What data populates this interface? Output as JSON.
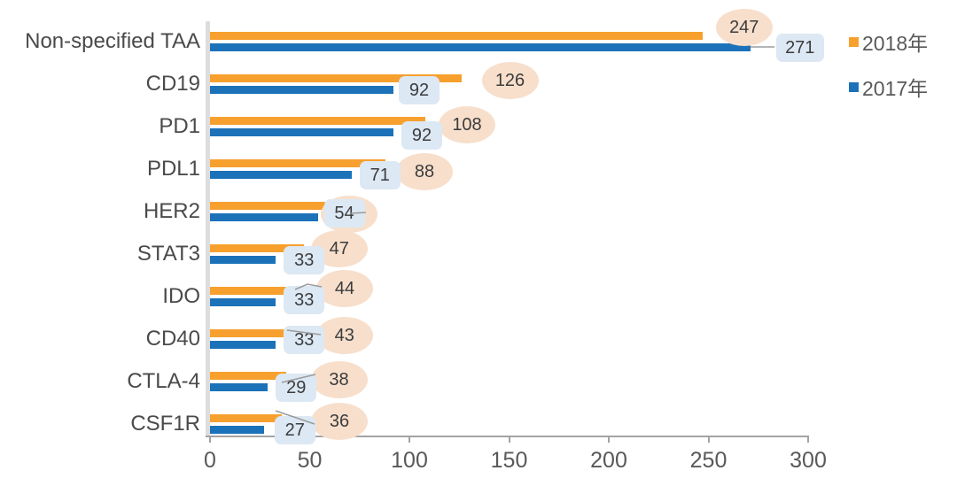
{
  "chart_data": {
    "type": "bar",
    "orientation": "horizontal",
    "title": "",
    "categories": [
      "Non-specified TAA",
      "CD19",
      "PD1",
      "PDL1",
      "HER2",
      "STAT3",
      "IDO",
      "CD40",
      "CTLA-4",
      "CSF1R"
    ],
    "series": [
      {
        "name": "2018年",
        "color": "#f7a02e",
        "label_bubble_color": "#f7dfcc",
        "values": [
          247,
          126,
          108,
          88,
          68,
          47,
          44,
          43,
          38,
          36
        ]
      },
      {
        "name": "2017年",
        "color": "#1c72b8",
        "label_bubble_color": "#dce8f4",
        "values": [
          271,
          92,
          92,
          71,
          54,
          33,
          33,
          33,
          29,
          27
        ]
      }
    ],
    "x_axis": {
      "min": 0,
      "max": 300,
      "ticks": [
        0,
        50,
        100,
        150,
        200,
        250,
        300
      ]
    },
    "grid": false,
    "legend_position": "top-right",
    "data_labels_shown": true
  },
  "colors": {
    "category_text": "#4a4a4a",
    "tick_text": "#595959",
    "label_text": "#3c3c3c",
    "y_axis_line": "#dddddd",
    "x_axis_line": "#a3a3a3",
    "leader_line": "#9b9b9b",
    "background": "#ffffff"
  }
}
